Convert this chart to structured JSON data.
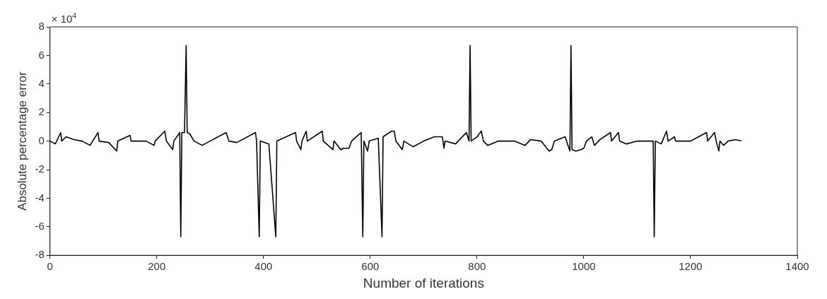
{
  "chart_data": {
    "type": "line",
    "xlabel": "Number of iterations",
    "ylabel": "Absolute percentage error",
    "annotations": [
      "× 10$^{4}$"
    ],
    "xlim": [
      0,
      1400
    ],
    "xticks": [
      0,
      200,
      400,
      600,
      800,
      1000,
      1200,
      1400
    ],
    "ylim": [
      -8,
      8
    ],
    "yticks": [
      -8,
      -6,
      -4,
      -2,
      0,
      2,
      4,
      6,
      8
    ],
    "grid": false,
    "legend": false,
    "marker": "none",
    "line_style": "solid",
    "series": [
      {
        "color": "#000000",
        "x": [
          0,
          10,
          20,
          22,
          30,
          45,
          60,
          75,
          90,
          92,
          110,
          125,
          127,
          150,
          152,
          180,
          195,
          197,
          215,
          218,
          230,
          232,
          243,
          245,
          247,
          252,
          255,
          257,
          262,
          270,
          285,
          300,
          310,
          330,
          335,
          350,
          385,
          387,
          392,
          394,
          410,
          423,
          425,
          460,
          462,
          470,
          472,
          480,
          482,
          510,
          512,
          530,
          532,
          545,
          550,
          560,
          565,
          583,
          586,
          588,
          595,
          598,
          615,
          622,
          624,
          640,
          645,
          648,
          660,
          663,
          680,
          700,
          720,
          735,
          738,
          740,
          760,
          780,
          785,
          787,
          789,
          800,
          808,
          812,
          820,
          840,
          870,
          890,
          900,
          920,
          935,
          940,
          945,
          965,
          974,
          976,
          978,
          985,
          995,
          1000,
          1005,
          1015,
          1020,
          1030,
          1050,
          1052,
          1065,
          1067,
          1080,
          1100,
          1130,
          1132,
          1134,
          1145,
          1155,
          1158,
          1170,
          1172,
          1200,
          1215,
          1230,
          1232,
          1245,
          1248,
          1253,
          1255,
          1262,
          1270,
          1285,
          1295
        ],
        "values": [
          0,
          -0.2,
          0.6,
          0,
          0.3,
          0.1,
          0,
          -0.3,
          0.6,
          0,
          -0.1,
          -0.7,
          0,
          0.4,
          0,
          0,
          -0.3,
          0,
          0.7,
          0,
          -0.6,
          0,
          0.6,
          -6.7,
          0.6,
          0.6,
          6.7,
          0.6,
          0.5,
          0,
          -0.3,
          0,
          0.2,
          0.6,
          0,
          -0.1,
          0.6,
          0,
          -6.7,
          0,
          -0.2,
          -6.7,
          0,
          0.6,
          0,
          -0.6,
          0,
          0.7,
          0,
          0.7,
          0,
          -0.6,
          0,
          -0.6,
          -0.5,
          -0.5,
          0,
          0.6,
          -6.7,
          0,
          -0.7,
          0,
          0.2,
          -6.7,
          0.3,
          0.7,
          0.7,
          0,
          -0.6,
          0,
          -0.4,
          0,
          0.3,
          0.3,
          -0.5,
          0,
          -0.2,
          0.6,
          0,
          6.7,
          0,
          0.3,
          0.7,
          0,
          -0.3,
          0,
          0,
          -0.3,
          0.1,
          0,
          -0.7,
          -0.6,
          0,
          0.3,
          -0.7,
          6.7,
          -0.6,
          -0.7,
          -0.6,
          -0.5,
          0,
          0.3,
          -0.3,
          0.1,
          0.6,
          0,
          0.6,
          0,
          -0.2,
          0,
          0,
          -6.7,
          0,
          -0.2,
          0.7,
          0,
          0.3,
          0,
          0,
          0.3,
          0.6,
          0,
          0.6,
          0,
          -0.7,
          0,
          -0.3,
          0,
          0.1,
          0
        ]
      }
    ]
  }
}
